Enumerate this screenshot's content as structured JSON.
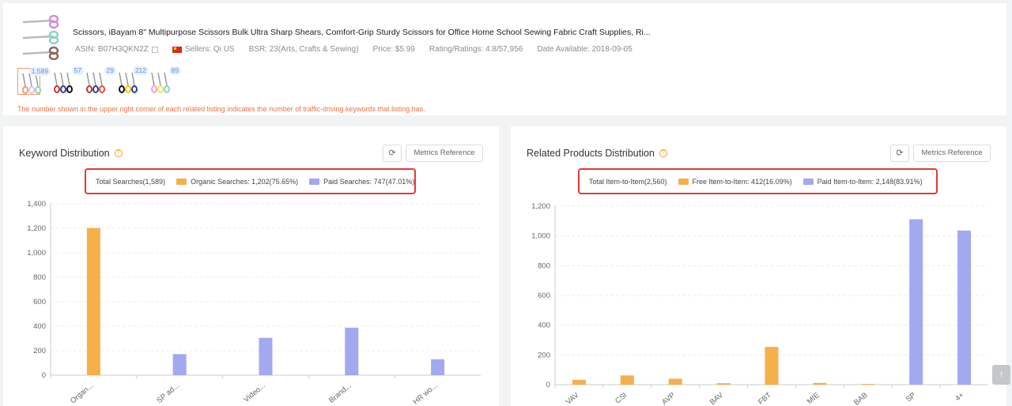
{
  "product": {
    "title": "Scissors, iBayam 8\" Multipurpose Scissors Bulk Ultra Sharp Shears, Comfort-Grip Sturdy Scissors for Office Home School Sewing Fabric Craft Supplies, Ri...",
    "asin": "ASIN: B07H3QKN2Z",
    "sellers": "Sellers: Qi US",
    "bsr": "BSR: 23(Arts, Crafts & Sewing)",
    "price": "Price: $5.99",
    "rating": "Rating/Ratings: 4.8/57,956",
    "date_available": "Date Available: 2018-09-05",
    "related_listings": [
      {
        "badge": "1,589",
        "colors": [
          "#f39c6b",
          "#e1c2f0",
          "#8fd1c3"
        ]
      },
      {
        "badge": "57",
        "colors": [
          "#c0392b",
          "#2c3e8f",
          "#111"
        ]
      },
      {
        "badge": "29",
        "colors": [
          "#c0392b",
          "#2c3e8f",
          "#e74c3c"
        ]
      },
      {
        "badge": "212",
        "colors": [
          "#111",
          "#f1c40f",
          "#2c3e8f"
        ]
      },
      {
        "badge": "89",
        "colors": [
          "#f5a3c7",
          "#f1e27a",
          "#8fd1c3"
        ]
      }
    ],
    "notice": "The number shown in the upper right corner of each related listing indicates the number of traffic-driving keywords that listing has."
  },
  "keyword_panel": {
    "title": "Keyword Distribution",
    "metrics_button": "Metrics Reference",
    "legend": {
      "total": "Total Searches(1,589)",
      "organic": "Organic Searches: 1,202(75.65%)",
      "paid": "Paid Searches: 747(47.01%)"
    }
  },
  "related_panel": {
    "title": "Related Products Distribution",
    "metrics_button": "Metrics Reference",
    "legend": {
      "total": "Total Item-to-Item(2,560)",
      "free": "Free Item-to-Item: 412(16.09%)",
      "paid": "Paid Item-to-Item: 2,148(83.91%)"
    }
  },
  "colors": {
    "organic": "#f5b04a",
    "paid": "#a3a9ee",
    "accent": "#e53935"
  },
  "chart_data": [
    {
      "type": "bar",
      "categories": [
        "Organ...",
        "SP ad...",
        "Video...",
        "Brand...",
        "HR wo..."
      ],
      "series": [
        {
          "name": "Organic Searches",
          "values": [
            1202,
            0,
            0,
            0,
            0
          ]
        },
        {
          "name": "Paid Searches",
          "values": [
            0,
            172,
            305,
            388,
            130
          ]
        }
      ],
      "ylim": [
        0,
        1400
      ],
      "yticks": [
        "0",
        "200",
        "400",
        "600",
        "800",
        "1,000",
        "1,200",
        "1,400"
      ],
      "grid": true
    },
    {
      "type": "bar",
      "categories": [
        "VAV",
        "CSI",
        "AVP",
        "BAV",
        "FBT",
        "MIE",
        "BAB",
        "SP",
        "4+"
      ],
      "series": [
        {
          "name": "Free Item-to-Item",
          "values": [
            33,
            62,
            40,
            10,
            254,
            12,
            5,
            0,
            0
          ]
        },
        {
          "name": "Paid Item-to-Item",
          "values": [
            0,
            0,
            0,
            0,
            0,
            0,
            0,
            1112,
            1036
          ]
        }
      ],
      "ylim": [
        0,
        1200
      ],
      "yticks": [
        "0",
        "200",
        "400",
        "600",
        "800",
        "1,000",
        "1,200"
      ],
      "grid": true
    }
  ]
}
